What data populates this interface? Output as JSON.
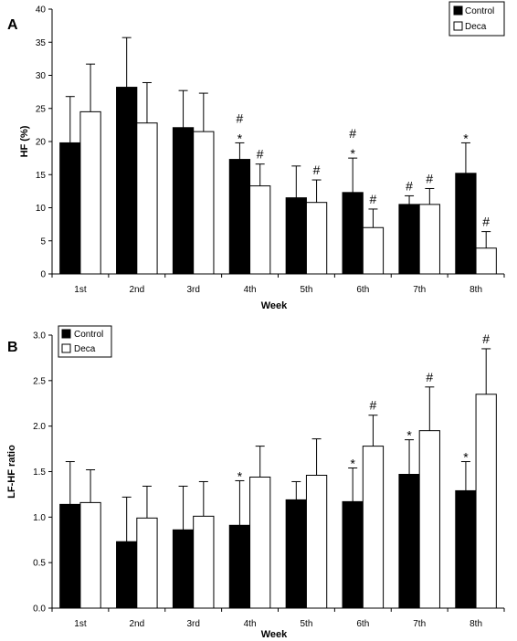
{
  "chart_data": [
    {
      "type": "bar",
      "panel_label": "A",
      "categories": [
        "1st",
        "2nd",
        "3rd",
        "4th",
        "5th",
        "6th",
        "7th",
        "8th"
      ],
      "xlabel": "Week",
      "ylabel": "HF (%)",
      "ylim": [
        0,
        40
      ],
      "yticks": [
        "0",
        "5",
        "10",
        "15",
        "20",
        "25",
        "30",
        "35",
        "40"
      ],
      "grid": false,
      "legend_position": "top-right",
      "series": [
        {
          "name": "Control",
          "color": "#000000",
          "values": [
            19.8,
            28.2,
            22.1,
            17.3,
            11.5,
            12.3,
            10.5,
            15.2
          ],
          "error": [
            7.0,
            7.5,
            5.6,
            2.5,
            4.8,
            5.2,
            1.3,
            4.6
          ]
        },
        {
          "name": "Deca",
          "color": "#ffffff",
          "values": [
            24.5,
            22.8,
            21.5,
            13.3,
            10.8,
            7.0,
            10.5,
            3.9
          ],
          "error": [
            7.2,
            6.1,
            5.8,
            3.3,
            3.4,
            2.8,
            2.4,
            2.5
          ]
        }
      ],
      "annotations": [
        {
          "category": "4th",
          "series": "Control",
          "text": "*"
        },
        {
          "category": "4th",
          "series": "Control",
          "text": "#"
        },
        {
          "category": "4th",
          "series": "Deca",
          "text": "#"
        },
        {
          "category": "5th",
          "series": "Deca",
          "text": "#"
        },
        {
          "category": "6th",
          "series": "Control",
          "text": "*"
        },
        {
          "category": "6th",
          "series": "Control",
          "text": "#"
        },
        {
          "category": "6th",
          "series": "Deca",
          "text": "#"
        },
        {
          "category": "7th",
          "series": "Control",
          "text": "#"
        },
        {
          "category": "7th",
          "series": "Deca",
          "text": "#"
        },
        {
          "category": "8th",
          "series": "Control",
          "text": "*"
        },
        {
          "category": "8th",
          "series": "Deca",
          "text": "#"
        }
      ]
    },
    {
      "type": "bar",
      "panel_label": "B",
      "categories": [
        "1st",
        "2nd",
        "3rd",
        "4th",
        "5th",
        "6th",
        "7th",
        "8th"
      ],
      "xlabel": "Week",
      "ylabel": "LF-HF ratio",
      "ylim": [
        0,
        3
      ],
      "yticks": [
        "0.0",
        "0.5",
        "1.0",
        "1.5",
        "2.0",
        "2.5",
        "3.0"
      ],
      "grid": false,
      "legend_position": "top-left",
      "series": [
        {
          "name": "Control",
          "color": "#000000",
          "values": [
            1.14,
            0.73,
            0.86,
            0.91,
            1.19,
            1.17,
            1.47,
            1.29
          ],
          "error": [
            0.47,
            0.49,
            0.48,
            0.49,
            0.2,
            0.37,
            0.38,
            0.32
          ]
        },
        {
          "name": "Deca",
          "color": "#ffffff",
          "values": [
            1.16,
            0.99,
            1.01,
            1.44,
            1.46,
            1.78,
            1.95,
            2.35
          ],
          "error": [
            0.36,
            0.35,
            0.38,
            0.34,
            0.4,
            0.34,
            0.48,
            0.5
          ]
        }
      ],
      "annotations": [
        {
          "category": "4th",
          "series": "Control",
          "text": "*"
        },
        {
          "category": "6th",
          "series": "Control",
          "text": "*"
        },
        {
          "category": "6th",
          "series": "Deca",
          "text": "#"
        },
        {
          "category": "7th",
          "series": "Control",
          "text": "*"
        },
        {
          "category": "7th",
          "series": "Deca",
          "text": "#"
        },
        {
          "category": "8th",
          "series": "Control",
          "text": "*"
        },
        {
          "category": "8th",
          "series": "Deca",
          "text": "#"
        }
      ]
    }
  ]
}
